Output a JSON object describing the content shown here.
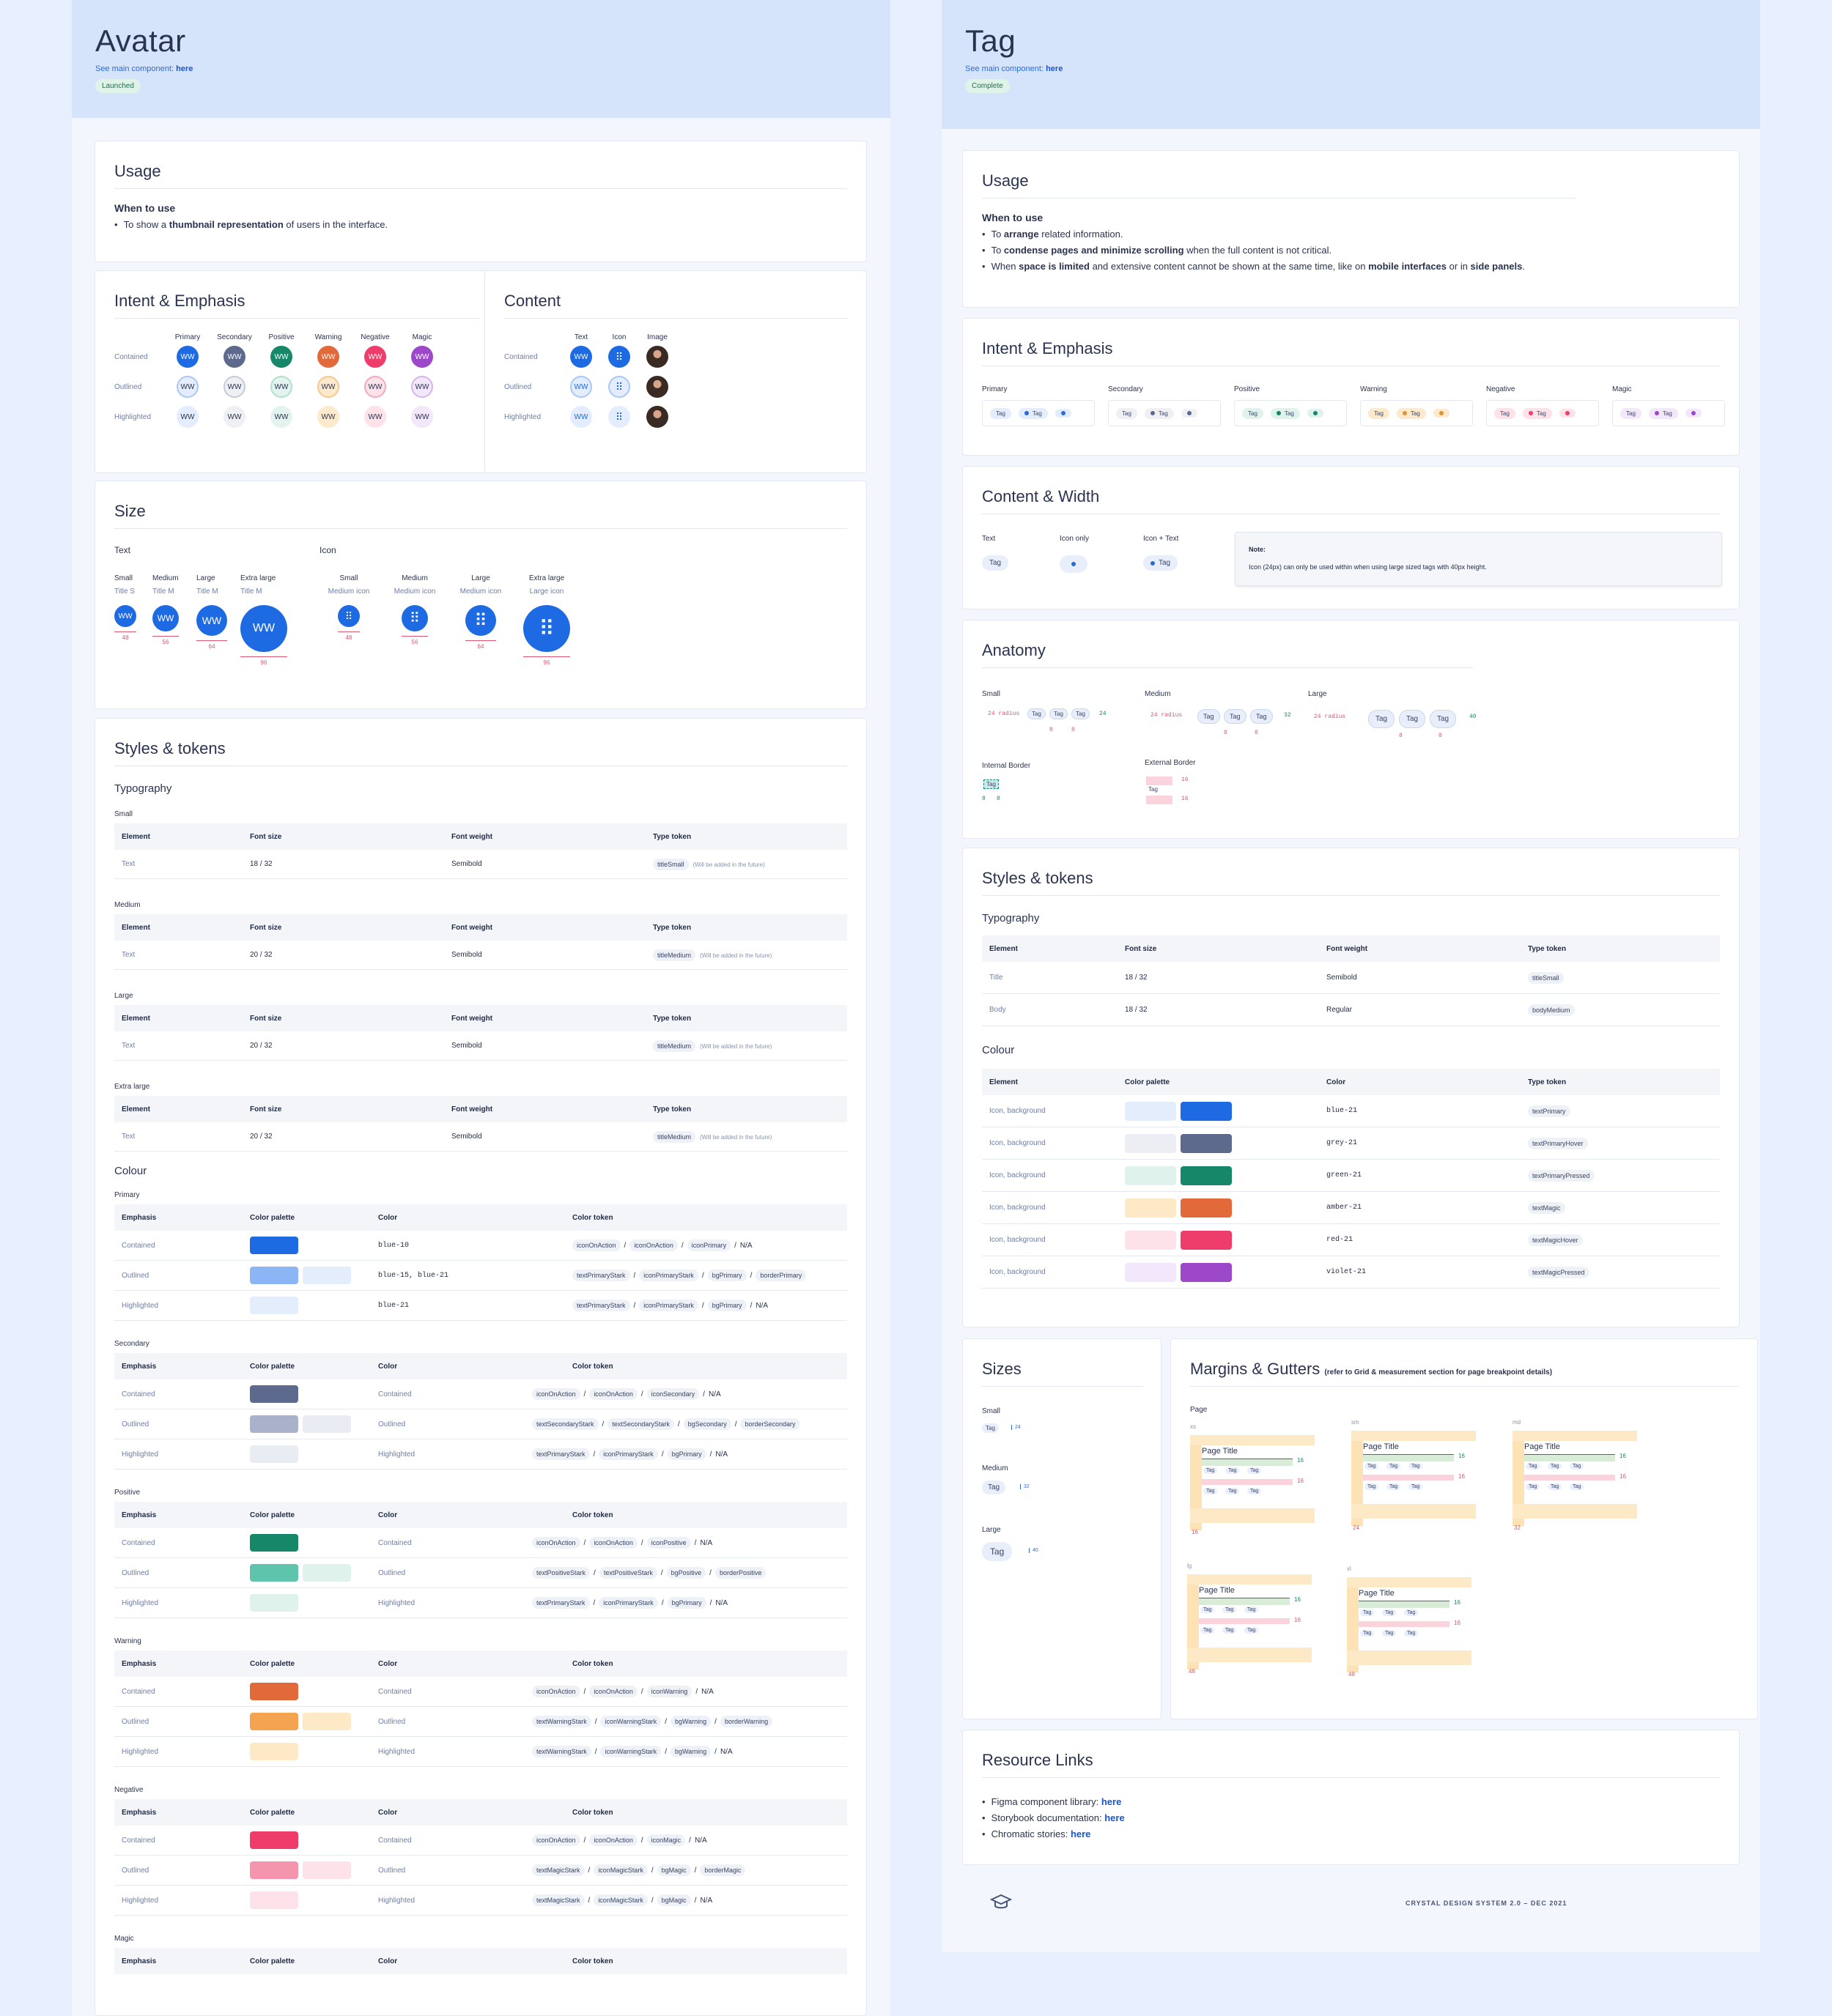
{
  "avatar": {
    "title": "Avatar",
    "see_text": "See main component:",
    "see_link": "here",
    "status": "Launched",
    "usage": {
      "title": "Usage",
      "when": "When to use",
      "items_pre": "To show a",
      "items_bold": "thumbnail representation",
      "items_post": "of users in the interface."
    },
    "intent": {
      "title": "Intent & Emphasis",
      "cols": [
        "Primary",
        "Secondary",
        "Positive",
        "Warning",
        "Negative",
        "Magic"
      ],
      "rows": [
        "Contained",
        "Outlined",
        "Highlighted"
      ],
      "initials": "WW",
      "colors": [
        "#1e6ae3",
        "#5d6a8e",
        "#17876a",
        "#e2693a",
        "#ef3d6b",
        "#9c48c9"
      ],
      "outlined": [
        "#aac8f7",
        "#c5cbd9",
        "#b2e0cf",
        "#f8c78f",
        "#f6a9bd",
        "#d7b5ec"
      ],
      "highlight": [
        "#e4edfd",
        "#eef0f4",
        "#e3f4ee",
        "#fdeacc",
        "#fde3e9",
        "#f3e7fb"
      ]
    },
    "content": {
      "title": "Content",
      "cols": [
        "Text",
        "Icon",
        "Image"
      ],
      "rows": [
        "Contained",
        "Outlined",
        "Highlighted"
      ]
    },
    "size": {
      "title": "Size",
      "text_label": "Text",
      "icon_label": "Icon",
      "text_sizes": [
        {
          "name": "Small",
          "tok": "Title S",
          "val": "48"
        },
        {
          "name": "Medium",
          "tok": "Title M",
          "val": "56"
        },
        {
          "name": "Large",
          "tok": "Title M",
          "val": "64"
        },
        {
          "name": "Extra large",
          "tok": "Title M",
          "val": "96"
        }
      ],
      "icon_sizes": [
        {
          "name": "Small",
          "tok": "Medium icon",
          "val": "48"
        },
        {
          "name": "Medium",
          "tok": "Medium icon",
          "val": "56"
        },
        {
          "name": "Large",
          "tok": "Medium icon",
          "val": "64"
        },
        {
          "name": "Extra large",
          "tok": "Large icon",
          "val": "96"
        }
      ]
    },
    "styles": {
      "title": "Styles & tokens",
      "typo": "Typography",
      "headers": [
        "Element",
        "Font size",
        "Font weight",
        "Type token"
      ],
      "groups": [
        {
          "name": "Small",
          "el": "Text",
          "size": "18 / 32",
          "weight": "Semibold",
          "tok": "titleSmall",
          "note": "(Will be added in the future)"
        },
        {
          "name": "Medium",
          "el": "Text",
          "size": "20 / 32",
          "weight": "Semibold",
          "tok": "titleMedium",
          "note": "(Will be added in the future)"
        },
        {
          "name": "Large",
          "el": "Text",
          "size": "20 / 32",
          "weight": "Semibold",
          "tok": "titleMedium",
          "note": "(Will be added in the future)"
        },
        {
          "name": "Extra large",
          "el": "Text",
          "size": "20 / 32",
          "weight": "Semibold",
          "tok": "titleMedium",
          "note": "(Will be added in the future)"
        }
      ],
      "colour": "Colour",
      "cheaders": [
        "Emphasis",
        "Color palette",
        "Color",
        "Color token"
      ],
      "cgroups": [
        {
          "name": "Primary",
          "rows": [
            {
              "e": "Contained",
              "c": "blue-10",
              "toks": [
                "iconOnAction",
                "iconOnAction",
                "iconPrimary"
              ],
              "tail": "N/A",
              "sw": [
                "#1e6ae3"
              ]
            },
            {
              "e": "Outlined",
              "c": "blue-15, blue-21",
              "toks": [
                "textPrimaryStark",
                "iconPrimaryStark",
                "bgPrimary",
                "borderPrimary"
              ],
              "tail": "",
              "sw": [
                "#8bb5f5",
                "#e3edfc"
              ]
            },
            {
              "e": "Highlighted",
              "c": "blue-21",
              "toks": [
                "textPrimaryStark",
                "iconPrimaryStark",
                "bgPrimary"
              ],
              "tail": "N/A",
              "sw": [
                "#e3edfc"
              ]
            }
          ]
        },
        {
          "name": "Secondary",
          "rows": [
            {
              "e": "Contained",
              "c": "Contained",
              "toks": [
                "iconOnAction",
                "iconOnAction",
                "iconSecondary"
              ],
              "tail": "N/A",
              "sw": [
                "#5d6a8e"
              ]
            },
            {
              "e": "Outlined",
              "c": "Outlined",
              "toks": [
                "textSecondaryStark",
                "textSecondaryStark",
                "bgSecondary",
                "borderSecondary"
              ],
              "tail": "",
              "sw": [
                "#aab2cb",
                "#e9ecf3"
              ]
            },
            {
              "e": "Highlighted",
              "c": "Highlighted",
              "toks": [
                "textPrimaryStark",
                "iconPrimaryStark",
                "bgPrimary"
              ],
              "tail": "N/A",
              "sw": [
                "#e9ecf3"
              ]
            }
          ]
        },
        {
          "name": "Positive",
          "rows": [
            {
              "e": "Contained",
              "c": "Contained",
              "toks": [
                "iconOnAction",
                "iconOnAction",
                "iconPositive"
              ],
              "tail": "N/A",
              "sw": [
                "#17876a"
              ]
            },
            {
              "e": "Outlined",
              "c": "Outlined",
              "toks": [
                "textPositiveStark",
                "textPositiveStark",
                "bgPositive",
                "borderPositive"
              ],
              "tail": "",
              "sw": [
                "#5fc4ac",
                "#dff3ec"
              ]
            },
            {
              "e": "Highlighted",
              "c": "Highlighted",
              "toks": [
                "textPrimaryStark",
                "iconPrimaryStark",
                "bgPrimary"
              ],
              "tail": "N/A",
              "sw": [
                "#dff3ec"
              ]
            }
          ]
        },
        {
          "name": "Warning",
          "rows": [
            {
              "e": "Contained",
              "c": "Contained",
              "toks": [
                "iconOnAction",
                "iconOnAction",
                "iconWarning"
              ],
              "tail": "N/A",
              "sw": [
                "#e2693a"
              ]
            },
            {
              "e": "Outlined",
              "c": "Outlined",
              "toks": [
                "textWarningStark",
                "iconWarningStark",
                "bgWarning",
                "borderWarning"
              ],
              "tail": "",
              "sw": [
                "#f4a350",
                "#fde9c6"
              ]
            },
            {
              "e": "Highlighted",
              "c": "Highlighted",
              "toks": [
                "textWarningStark",
                "iconWarningStark",
                "bgWarning"
              ],
              "tail": "N/A",
              "sw": [
                "#fde9c6"
              ]
            }
          ]
        },
        {
          "name": "Negative",
          "rows": [
            {
              "e": "Contained",
              "c": "Contained",
              "toks": [
                "iconOnAction",
                "iconOnAction",
                "iconMagic"
              ],
              "tail": "N/A",
              "sw": [
                "#ef3d6b"
              ]
            },
            {
              "e": "Outlined",
              "c": "Outlined",
              "toks": [
                "textMagicStark",
                "iconMagicStark",
                "bgMagic",
                "borderMagic"
              ],
              "tail": "",
              "sw": [
                "#f594ad",
                "#fde3e9"
              ]
            },
            {
              "e": "Highlighted",
              "c": "Highlighted",
              "toks": [
                "textMagicStark",
                "iconMagicStark",
                "bgMagic"
              ],
              "tail": "N/A",
              "sw": [
                "#fde3e9"
              ]
            }
          ]
        },
        {
          "name": "Magic",
          "rows": []
        }
      ]
    }
  },
  "tag": {
    "title": "Tag",
    "see_text": "See main component:",
    "see_link": "here",
    "status": "Complete",
    "usage": {
      "title": "Usage",
      "when": "When to use",
      "items": [
        [
          [
            "To ",
            0
          ],
          [
            "arrange",
            1
          ],
          [
            " related information.",
            0
          ]
        ],
        [
          [
            "To ",
            0
          ],
          [
            "condense pages and minimize scrolling",
            1
          ],
          [
            " when the full content is not critical.",
            0
          ]
        ],
        [
          [
            "When ",
            0
          ],
          [
            "space is limited",
            1
          ],
          [
            " and extensive content cannot be shown at the same time, like on ",
            0
          ],
          [
            "mobile interfaces",
            1
          ],
          [
            " or in ",
            0
          ],
          [
            "side panels",
            1
          ],
          [
            ".",
            0
          ]
        ]
      ]
    },
    "intent": {
      "title": "Intent & Emphasis",
      "cols": [
        "Primary",
        "Secondary",
        "Positive",
        "Warning",
        "Negative",
        "Magic"
      ],
      "tag": "Tag",
      "dots": [
        "#2b6bd9",
        "#5d6a8e",
        "#17876a",
        "#e2913a",
        "#ef3d6b",
        "#9c48c9"
      ],
      "bgs": [
        "#e4edfd",
        "#eef0f4",
        "#dff3ec",
        "#fdeacc",
        "#fde3e9",
        "#f3e7fb"
      ]
    },
    "cw": {
      "title": "Content & Width",
      "opts": [
        "Text",
        "Icon only",
        "Icon + Text"
      ],
      "note_title": "Note:",
      "note": "Icon (24px) can only be used within when using large sized tags with 40px height."
    },
    "anatomy": {
      "title": "Anatomy",
      "sizes": [
        {
          "n": "Small",
          "h": "24"
        },
        {
          "n": "Medium",
          "h": "32"
        },
        {
          "n": "Large",
          "h": "40"
        }
      ],
      "radius": "24 radius",
      "gap": "8",
      "ib": "Internal Border",
      "eb": "External Border",
      "ibv": "8",
      "ebv": "16"
    },
    "styles": {
      "title": "Styles & tokens",
      "typo": "Typography",
      "headers": [
        "Element",
        "Font size",
        "Font weight",
        "Type token"
      ],
      "trows": [
        {
          "e": "Title",
          "s": "18 / 32",
          "w": "Semibold",
          "t": "titleSmall"
        },
        {
          "e": "Body",
          "s": "18 / 32",
          "w": "Regular",
          "t": "bodyMedium"
        }
      ],
      "colour": "Colour",
      "cheaders": [
        "Element",
        "Color palette",
        "Color",
        "Type token"
      ],
      "crows": [
        {
          "e": "Icon, background",
          "c": "blue-21",
          "t": "textPrimary",
          "sw": [
            "#e3edfc",
            "#1e6ae3"
          ]
        },
        {
          "e": "Icon, background",
          "c": "grey-21",
          "t": "textPrimaryHover",
          "sw": [
            "#eceef3",
            "#5d6a8e"
          ]
        },
        {
          "e": "Icon, background",
          "c": "green-21",
          "t": "textPrimaryPressed",
          "sw": [
            "#dff3ec",
            "#17876a"
          ]
        },
        {
          "e": "Icon, background",
          "c": "amber-21",
          "t": "textMagic",
          "sw": [
            "#fde9c6",
            "#e2693a"
          ]
        },
        {
          "e": "Icon, background",
          "c": "red-21",
          "t": "textMagicHover",
          "sw": [
            "#fde3e9",
            "#ef3d6b"
          ]
        },
        {
          "e": "Icon, background",
          "c": "violet-21",
          "t": "textMagicPressed",
          "sw": [
            "#f3e7fb",
            "#9c48c9"
          ]
        }
      ]
    },
    "sizes": {
      "title": "Sizes",
      "items": [
        {
          "n": "Small",
          "v": "24"
        },
        {
          "n": "Medium",
          "v": "32"
        },
        {
          "n": "Large",
          "v": "40"
        }
      ]
    },
    "mg": {
      "title": "Margins & Gutters",
      "sub": "(refer to Grid & measurement section for page breakpoint details)",
      "page": "Page",
      "pt": "Page Title",
      "gut": "16",
      "bps": [
        {
          "k": "xs",
          "m": "16"
        },
        {
          "k": "sm",
          "m": "24"
        },
        {
          "k": "md",
          "m": "32"
        },
        {
          "k": "lg",
          "m": "48"
        },
        {
          "k": "xl",
          "m": "48"
        }
      ]
    },
    "res": {
      "title": "Resource Links",
      "items": [
        {
          "t": "Figma component library:",
          "l": "here"
        },
        {
          "t": "Storybook documentation:",
          "l": "here"
        },
        {
          "t": "Chromatic stories:",
          "l": "here"
        }
      ]
    },
    "footer": "CRYSTAL DESIGN SYSTEM 2.0 – DEC 2021"
  }
}
